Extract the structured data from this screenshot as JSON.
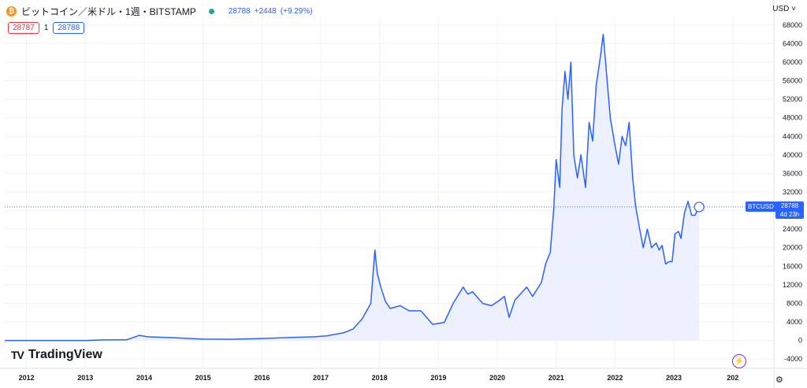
{
  "header": {
    "coin_icon": "bitcoin-icon",
    "title": "ビットコイン／米ドル・1週・BITSTAMP",
    "price": "28788",
    "change": "+2448",
    "change_pct": "(+9.29%)",
    "bid": "28787",
    "spread": "1",
    "ask": "28788"
  },
  "currency": "USD",
  "symbol_tag": "BTCUSD",
  "price_label": {
    "price": "28788",
    "countdown": "4d 23h"
  },
  "logo_text": "TradingView",
  "colors": {
    "line": "#2962ff",
    "fill": "#e8edff",
    "grid": "#f0f3fa"
  },
  "chart_data": {
    "type": "area",
    "y_ticks": [
      -4000,
      0,
      4000,
      8000,
      12000,
      16000,
      20000,
      24000,
      28000,
      32000,
      36000,
      40000,
      44000,
      48000,
      52000,
      56000,
      60000,
      64000,
      68000
    ],
    "x_ticks": [
      "2012",
      "2013",
      "2014",
      "2015",
      "2016",
      "2017",
      "2018",
      "2019",
      "2020",
      "2021",
      "2022",
      "2023",
      "202"
    ],
    "ylim": [
      -6000,
      70000
    ],
    "xlim": [
      2011.63,
      2024.7
    ],
    "last_value": 28788,
    "series": [
      {
        "x": [
          2011.63,
          2012.0,
          2012.5,
          2013.0,
          2013.3,
          2013.7,
          2013.92,
          2014.05,
          2014.5,
          2015.0,
          2015.5,
          2016.0,
          2016.5,
          2016.9,
          2017.1,
          2017.4,
          2017.55,
          2017.7,
          2017.85,
          2017.92,
          2017.96,
          2018.02,
          2018.1,
          2018.18,
          2018.35,
          2018.5,
          2018.7,
          2018.9,
          2018.97,
          2019.1,
          2019.25,
          2019.42,
          2019.5,
          2019.58,
          2019.75,
          2019.9,
          2020.02,
          2020.12,
          2020.2,
          2020.3,
          2020.5,
          2020.6,
          2020.75,
          2020.82,
          2020.9,
          2020.96,
          2021.0,
          2021.06,
          2021.1,
          2021.15,
          2021.2,
          2021.25,
          2021.3,
          2021.36,
          2021.42,
          2021.5,
          2021.56,
          2021.62,
          2021.68,
          2021.75,
          2021.8,
          2021.86,
          2021.92,
          2022.0,
          2022.06,
          2022.12,
          2022.18,
          2022.24,
          2022.3,
          2022.35,
          2022.42,
          2022.48,
          2022.55,
          2022.62,
          2022.7,
          2022.75,
          2022.8,
          2022.86,
          2022.92,
          2022.97,
          2023.02,
          2023.08,
          2023.12,
          2023.18,
          2023.24,
          2023.3,
          2023.36,
          2023.43
        ],
        "y": [
          5,
          7,
          8,
          13,
          120,
          140,
          1100,
          800,
          600,
          300,
          260,
          430,
          650,
          800,
          1000,
          1700,
          2500,
          4600,
          8000,
          19500,
          14500,
          11500,
          8400,
          6900,
          7500,
          6400,
          6400,
          3500,
          3600,
          3900,
          8000,
          11500,
          10000,
          10500,
          8000,
          7500,
          8500,
          9500,
          5000,
          8700,
          11500,
          9500,
          12500,
          16500,
          19000,
          28500,
          39000,
          33000,
          50000,
          58000,
          52000,
          60000,
          40000,
          35000,
          40000,
          33000,
          47000,
          43000,
          55000,
          61000,
          66000,
          57000,
          48000,
          42000,
          38000,
          44000,
          42000,
          47000,
          35000,
          29000,
          24000,
          20000,
          24000,
          20000,
          21000,
          19500,
          20500,
          16500,
          17000,
          17000,
          23000,
          23500,
          22000,
          27500,
          30000,
          27000,
          27000,
          28788
        ]
      }
    ]
  }
}
